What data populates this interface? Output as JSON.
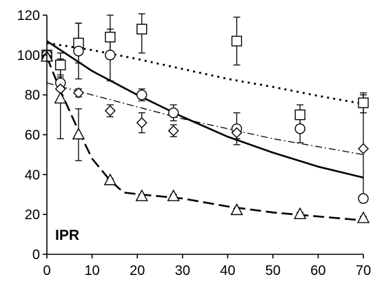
{
  "chart_data": {
    "type": "scatter",
    "title": "",
    "xlabel": "",
    "ylabel": "",
    "annotation": "IPR",
    "xlim": [
      0,
      70
    ],
    "ylim": [
      0,
      120
    ],
    "xticks": [
      0,
      10,
      20,
      30,
      40,
      50,
      60,
      70
    ],
    "yticks": [
      0,
      20,
      40,
      60,
      80,
      100,
      120
    ],
    "grid": false,
    "legend": "none",
    "series": [
      {
        "marker": "square",
        "x": [
          0,
          3,
          7,
          14,
          21,
          42,
          56,
          70
        ],
        "y": [
          100,
          95,
          106,
          109,
          113,
          107,
          70,
          76
        ],
        "err": [
          2,
          6,
          10,
          11,
          12,
          12,
          5,
          5
        ]
      },
      {
        "marker": "circle",
        "x": [
          0,
          3,
          7,
          14,
          21,
          28,
          42,
          56,
          70
        ],
        "y": [
          100,
          86,
          102,
          100,
          80,
          71,
          63,
          63,
          28
        ],
        "err": [
          2,
          4,
          14,
          13,
          3,
          4,
          8,
          7,
          2
        ]
      },
      {
        "marker": "diamond",
        "x": [
          0,
          3,
          7,
          14,
          21,
          28,
          42,
          70
        ],
        "y": [
          99,
          83,
          81,
          72,
          66,
          62,
          61,
          53
        ],
        "err": [
          1,
          1,
          2,
          3,
          5,
          3,
          3,
          27
        ]
      },
      {
        "marker": "triangle",
        "x": [
          0,
          3,
          7,
          14,
          21,
          28,
          42,
          56,
          70
        ],
        "y": [
          99,
          78,
          60,
          37,
          29,
          29,
          22,
          20,
          18
        ],
        "err": [
          2,
          20,
          13,
          1,
          1,
          1,
          1,
          1,
          1
        ]
      }
    ],
    "fits": [
      {
        "style": "dotted",
        "x": [
          0,
          10,
          20,
          30,
          40,
          50,
          60,
          70
        ],
        "y": [
          106,
          102.5,
          98,
          93,
          88,
          84,
          79.5,
          75.5
        ]
      },
      {
        "style": "solid",
        "x": [
          0,
          10,
          20,
          30,
          40,
          50,
          60,
          70
        ],
        "y": [
          107,
          92,
          80,
          69,
          59,
          51,
          44,
          38.5
        ]
      },
      {
        "style": "dash-dot",
        "x": [
          0,
          10,
          20,
          30,
          40,
          50,
          60,
          70
        ],
        "y": [
          86,
          80,
          74,
          68,
          63,
          58,
          54,
          50
        ]
      },
      {
        "style": "dashed",
        "x": [
          0,
          3,
          7,
          10,
          14,
          17,
          21,
          30,
          40,
          50,
          60,
          70
        ],
        "y": [
          99,
          82,
          62,
          48,
          37,
          31,
          30,
          28,
          24,
          21,
          19,
          17
        ]
      }
    ]
  }
}
